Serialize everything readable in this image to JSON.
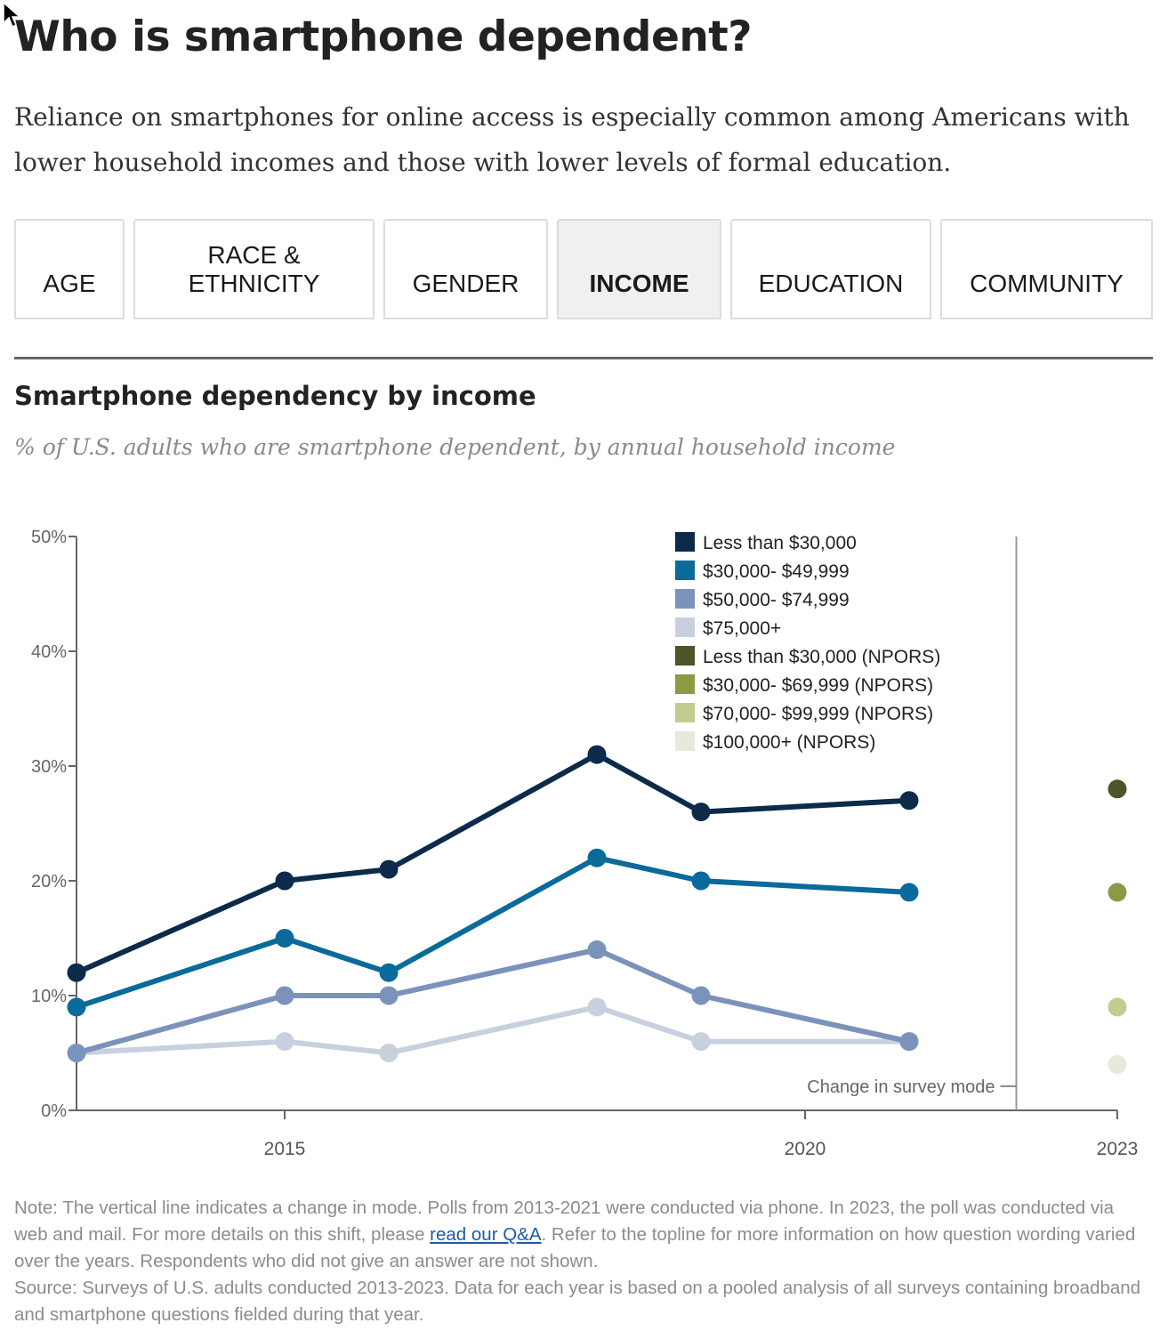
{
  "headline": "Who is smartphone dependent?",
  "dek": "Reliance on smartphones for online access is especially common among Americans with lower household incomes and those with lower levels of formal education.",
  "tabs": [
    {
      "label": "AGE",
      "active": false
    },
    {
      "label": "RACE & ETHNICITY",
      "active": false
    },
    {
      "label": "GENDER",
      "active": false
    },
    {
      "label": "INCOME",
      "active": true
    },
    {
      "label": "EDUCATION",
      "active": false
    },
    {
      "label": "COMMUNITY",
      "active": false
    }
  ],
  "chart_data": {
    "type": "line",
    "title": "Smartphone dependency by income",
    "subtitle": "% of U.S. adults who are smartphone dependent, by annual household income",
    "ylim": [
      0,
      50
    ],
    "y_ticks": [
      0,
      10,
      20,
      30,
      40,
      50
    ],
    "y_tick_labels": [
      "0%",
      "10%",
      "20%",
      "30%",
      "40%",
      "50%"
    ],
    "x_ticks": [
      2015,
      2020,
      2023
    ],
    "x_tick_labels": [
      "2015",
      "2020",
      "2023"
    ],
    "xlim": [
      2013,
      2023
    ],
    "x": [
      2013,
      2015,
      2016,
      2018,
      2019,
      2021
    ],
    "series": [
      {
        "name": "Less than $30,000",
        "color": "#0c2a4a",
        "values": [
          12,
          20,
          21,
          31,
          26,
          27
        ]
      },
      {
        "name": "$30,000- $49,999",
        "color": "#0a6a9a",
        "values": [
          9,
          15,
          12,
          22,
          20,
          19
        ]
      },
      {
        "name": "$50,000- $74,999",
        "color": "#7b93bb",
        "values": [
          5,
          10,
          10,
          14,
          10,
          6
        ]
      },
      {
        "name": "$75,000+",
        "color": "#c8d0e0",
        "values": [
          5,
          6,
          5,
          9,
          6,
          6
        ]
      }
    ],
    "npors_x": 2023,
    "npors_series": [
      {
        "name": "Less than $30,000 (NPORS)",
        "color": "#4a5528",
        "value": 28
      },
      {
        "name": "$30,000- $69,999 (NPORS)",
        "color": "#8a9b46",
        "value": 19
      },
      {
        "name": "$70,000- $99,999 (NPORS)",
        "color": "#c3cc8f",
        "value": 9
      },
      {
        "name": "$100,000+ (NPORS)",
        "color": "#e6e9dc",
        "value": 4
      }
    ],
    "mode_change_x": 2022.03,
    "mode_change_label": "Change in survey mode",
    "legend_placement": "top-right",
    "grid": false
  },
  "notes": {
    "note_before_link": "Note: The vertical line indicates a change in mode. Polls from 2013-2021 were conducted via phone. In 2023, the poll was conducted via web and mail. For more details on this shift, please ",
    "link_text": "read our Q&A",
    "note_after_link": ". Refer to the topline for more information on how question wording varied over the years. Respondents who did not give an answer are not shown.",
    "source": "Source: Surveys of U.S. adults conducted 2013-2023. Data for each year is based on a pooled analysis of all surveys containing broadband and smartphone questions fielded during that year."
  }
}
